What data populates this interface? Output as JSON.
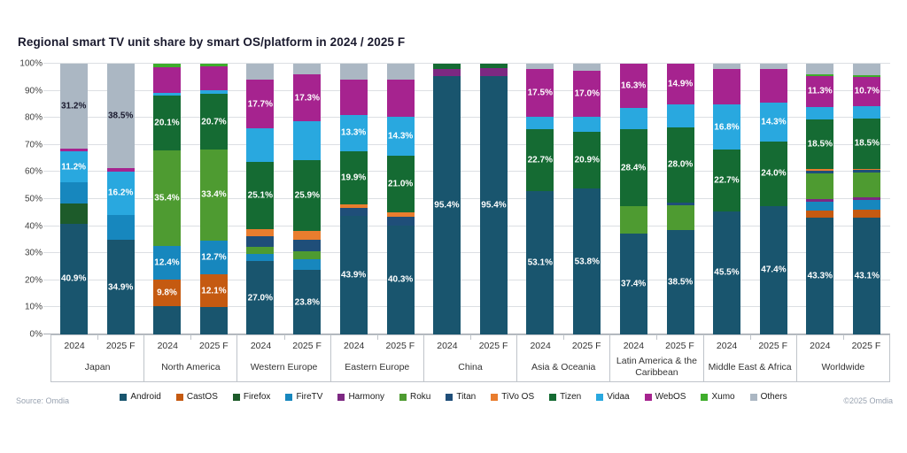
{
  "title": "Regional smart TV unit share by smart OS/platform in 2024 / 2025 F",
  "source": "Source: Omdia",
  "copyright": "©2025 Omdia",
  "y_axis": {
    "ticks": [
      "0%",
      "10%",
      "20%",
      "30%",
      "40%",
      "50%",
      "60%",
      "70%",
      "80%",
      "90%",
      "100%"
    ]
  },
  "legend": [
    {
      "name": "Android",
      "color": "#19556E"
    },
    {
      "name": "CastOS",
      "color": "#C55A11"
    },
    {
      "name": "Firefox",
      "color": "#1D5B2A"
    },
    {
      "name": "FireTV",
      "color": "#1787BE"
    },
    {
      "name": "Harmony",
      "color": "#7D2882"
    },
    {
      "name": "Roku",
      "color": "#4E9B31"
    },
    {
      "name": "Titan",
      "color": "#1F4E79"
    },
    {
      "name": "TiVo OS",
      "color": "#E97D2E"
    },
    {
      "name": "Tizen",
      "color": "#156B33"
    },
    {
      "name": "Vidaa",
      "color": "#29A8DF"
    },
    {
      "name": "WebOS",
      "color": "#A6238F"
    },
    {
      "name": "Xumo",
      "color": "#3FAD2C"
    },
    {
      "name": "Others",
      "color": "#ABB7C3"
    }
  ],
  "chart_data": {
    "type": "bar",
    "stacked": true,
    "unit": "%",
    "ylim": [
      0,
      100
    ],
    "grid": true,
    "legend_position": "bottom",
    "note": "lbl=true means the value label is printed on the segment; dk=true means dark label text",
    "groups": [
      {
        "region": "Japan",
        "bars": [
          {
            "year": "2024",
            "segments": [
              {
                "name": "Android",
                "value": 40.9,
                "lbl": true
              },
              {
                "name": "Firefox",
                "value": 7.4
              },
              {
                "name": "FireTV",
                "value": 8.0
              },
              {
                "name": "Vidaa",
                "value": 11.2,
                "lbl": true
              },
              {
                "name": "WebOS",
                "value": 1.3
              },
              {
                "name": "Others",
                "value": 31.2,
                "lbl": true,
                "dk": true
              }
            ]
          },
          {
            "year": "2025 F",
            "segments": [
              {
                "name": "Android",
                "value": 34.9,
                "lbl": true
              },
              {
                "name": "FireTV",
                "value": 9.2
              },
              {
                "name": "Vidaa",
                "value": 16.2,
                "lbl": true
              },
              {
                "name": "WebOS",
                "value": 1.2
              },
              {
                "name": "Others",
                "value": 38.5,
                "lbl": true,
                "dk": true
              }
            ]
          }
        ]
      },
      {
        "region": "North America",
        "bars": [
          {
            "year": "2024",
            "segments": [
              {
                "name": "Android",
                "value": 10.4
              },
              {
                "name": "CastOS",
                "value": 9.8,
                "lbl": true
              },
              {
                "name": "FireTV",
                "value": 12.4,
                "lbl": true
              },
              {
                "name": "Roku",
                "value": 35.4,
                "lbl": true
              },
              {
                "name": "Tizen",
                "value": 20.1,
                "lbl": true
              },
              {
                "name": "Vidaa",
                "value": 1.2
              },
              {
                "name": "WebOS",
                "value": 9.5
              },
              {
                "name": "Xumo",
                "value": 1.2
              }
            ]
          },
          {
            "year": "2025 F",
            "segments": [
              {
                "name": "Android",
                "value": 10.0
              },
              {
                "name": "CastOS",
                "value": 12.1,
                "lbl": true
              },
              {
                "name": "FireTV",
                "value": 12.7,
                "lbl": true
              },
              {
                "name": "Roku",
                "value": 33.4,
                "lbl": true
              },
              {
                "name": "Tizen",
                "value": 20.7,
                "lbl": true
              },
              {
                "name": "Vidaa",
                "value": 1.3
              },
              {
                "name": "WebOS",
                "value": 8.8
              },
              {
                "name": "Xumo",
                "value": 1.0
              }
            ]
          }
        ]
      },
      {
        "region": "Western Europe",
        "bars": [
          {
            "year": "2024",
            "segments": [
              {
                "name": "Android",
                "value": 27.0,
                "lbl": true
              },
              {
                "name": "FireTV",
                "value": 2.7
              },
              {
                "name": "Roku",
                "value": 2.7
              },
              {
                "name": "Titan",
                "value": 3.8
              },
              {
                "name": "TiVo OS",
                "value": 2.6
              },
              {
                "name": "Tizen",
                "value": 25.1,
                "lbl": true
              },
              {
                "name": "Vidaa",
                "value": 12.4
              },
              {
                "name": "WebOS",
                "value": 17.7,
                "lbl": true
              },
              {
                "name": "Others",
                "value": 6.0
              }
            ]
          },
          {
            "year": "2025 F",
            "segments": [
              {
                "name": "Android",
                "value": 23.8,
                "lbl": true
              },
              {
                "name": "FireTV",
                "value": 4.0
              },
              {
                "name": "Roku",
                "value": 3.0
              },
              {
                "name": "Titan",
                "value": 4.2
              },
              {
                "name": "TiVo OS",
                "value": 3.4
              },
              {
                "name": "Tizen",
                "value": 25.9,
                "lbl": true
              },
              {
                "name": "Vidaa",
                "value": 14.4
              },
              {
                "name": "WebOS",
                "value": 17.3,
                "lbl": true
              },
              {
                "name": "Others",
                "value": 4.0
              }
            ]
          }
        ]
      },
      {
        "region": "Eastern Europe",
        "bars": [
          {
            "year": "2024",
            "segments": [
              {
                "name": "Android",
                "value": 43.9,
                "lbl": true
              },
              {
                "name": "Titan",
                "value": 2.8
              },
              {
                "name": "TiVo OS",
                "value": 1.2
              },
              {
                "name": "Tizen",
                "value": 19.9,
                "lbl": true
              },
              {
                "name": "Vidaa",
                "value": 13.3,
                "lbl": true
              },
              {
                "name": "WebOS",
                "value": 12.9
              },
              {
                "name": "Others",
                "value": 6.0
              }
            ]
          },
          {
            "year": "2025 F",
            "segments": [
              {
                "name": "Android",
                "value": 40.3,
                "lbl": true
              },
              {
                "name": "Titan",
                "value": 3.2
              },
              {
                "name": "TiVo OS",
                "value": 1.5
              },
              {
                "name": "Tizen",
                "value": 21.0,
                "lbl": true
              },
              {
                "name": "Vidaa",
                "value": 14.3,
                "lbl": true
              },
              {
                "name": "WebOS",
                "value": 13.9
              },
              {
                "name": "Others",
                "value": 5.8
              }
            ]
          }
        ]
      },
      {
        "region": "China",
        "bars": [
          {
            "year": "2024",
            "segments": [
              {
                "name": "Android",
                "value": 95.4,
                "lbl": true
              },
              {
                "name": "Harmony",
                "value": 2.8
              },
              {
                "name": "Tizen",
                "value": 1.8
              }
            ]
          },
          {
            "year": "2025 F",
            "segments": [
              {
                "name": "Android",
                "value": 95.4,
                "lbl": true
              },
              {
                "name": "Harmony",
                "value": 3.0
              },
              {
                "name": "Tizen",
                "value": 1.6
              }
            ]
          }
        ]
      },
      {
        "region": "Asia & Oceania",
        "bars": [
          {
            "year": "2024",
            "segments": [
              {
                "name": "Android",
                "value": 53.1,
                "lbl": true
              },
              {
                "name": "Tizen",
                "value": 22.7,
                "lbl": true
              },
              {
                "name": "Vidaa",
                "value": 4.6
              },
              {
                "name": "WebOS",
                "value": 17.5,
                "lbl": true
              },
              {
                "name": "Others",
                "value": 2.1
              }
            ]
          },
          {
            "year": "2025 F",
            "segments": [
              {
                "name": "Android",
                "value": 53.8,
                "lbl": true
              },
              {
                "name": "Tizen",
                "value": 20.9,
                "lbl": true
              },
              {
                "name": "Vidaa",
                "value": 5.6
              },
              {
                "name": "WebOS",
                "value": 17.0,
                "lbl": true
              },
              {
                "name": "Others",
                "value": 2.7
              }
            ]
          }
        ]
      },
      {
        "region": "Latin America & the Caribbean",
        "bars": [
          {
            "year": "2024",
            "segments": [
              {
                "name": "Android",
                "value": 37.4,
                "lbl": true
              },
              {
                "name": "Roku",
                "value": 9.9
              },
              {
                "name": "Tizen",
                "value": 28.4,
                "lbl": true
              },
              {
                "name": "Vidaa",
                "value": 8.0
              },
              {
                "name": "WebOS",
                "value": 16.3,
                "lbl": true
              }
            ]
          },
          {
            "year": "2025 F",
            "segments": [
              {
                "name": "Android",
                "value": 38.5,
                "lbl": true
              },
              {
                "name": "Roku",
                "value": 9.1
              },
              {
                "name": "Titan",
                "value": 1.0
              },
              {
                "name": "Tizen",
                "value": 28.0,
                "lbl": true
              },
              {
                "name": "Vidaa",
                "value": 8.5
              },
              {
                "name": "WebOS",
                "value": 14.9,
                "lbl": true
              }
            ]
          }
        ]
      },
      {
        "region": "Middle East & Africa",
        "bars": [
          {
            "year": "2024",
            "segments": [
              {
                "name": "Android",
                "value": 45.5,
                "lbl": true
              },
              {
                "name": "Tizen",
                "value": 22.7,
                "lbl": true
              },
              {
                "name": "Vidaa",
                "value": 16.8,
                "lbl": true
              },
              {
                "name": "WebOS",
                "value": 13.2
              },
              {
                "name": "Others",
                "value": 1.8
              }
            ]
          },
          {
            "year": "2025 F",
            "segments": [
              {
                "name": "Android",
                "value": 47.4,
                "lbl": true
              },
              {
                "name": "Tizen",
                "value": 24.0,
                "lbl": true
              },
              {
                "name": "Vidaa",
                "value": 14.3,
                "lbl": true
              },
              {
                "name": "WebOS",
                "value": 12.5
              },
              {
                "name": "Others",
                "value": 1.8
              }
            ]
          }
        ]
      },
      {
        "region": "Worldwide",
        "bars": [
          {
            "year": "2024",
            "segments": [
              {
                "name": "Android",
                "value": 43.3,
                "lbl": true
              },
              {
                "name": "CastOS",
                "value": 2.6
              },
              {
                "name": "FireTV",
                "value": 3.2
              },
              {
                "name": "Harmony",
                "value": 0.9
              },
              {
                "name": "Roku",
                "value": 9.5
              },
              {
                "name": "Titan",
                "value": 1.0
              },
              {
                "name": "TiVo OS",
                "value": 0.5
              },
              {
                "name": "Tizen",
                "value": 18.5,
                "lbl": true
              },
              {
                "name": "Vidaa",
                "value": 4.6
              },
              {
                "name": "WebOS",
                "value": 11.3,
                "lbl": true
              },
              {
                "name": "Xumo",
                "value": 0.6
              },
              {
                "name": "Others",
                "value": 4.0
              }
            ]
          },
          {
            "year": "2025 F",
            "segments": [
              {
                "name": "Android",
                "value": 43.1,
                "lbl": true
              },
              {
                "name": "CastOS",
                "value": 3.0
              },
              {
                "name": "FireTV",
                "value": 3.6
              },
              {
                "name": "Harmony",
                "value": 1.0
              },
              {
                "name": "Roku",
                "value": 9.0
              },
              {
                "name": "Titan",
                "value": 1.0
              },
              {
                "name": "TiVo OS",
                "value": 0.5
              },
              {
                "name": "Tizen",
                "value": 18.5,
                "lbl": true
              },
              {
                "name": "Vidaa",
                "value": 4.8
              },
              {
                "name": "WebOS",
                "value": 10.7,
                "lbl": true
              },
              {
                "name": "Xumo",
                "value": 0.6
              },
              {
                "name": "Others",
                "value": 4.2
              }
            ]
          }
        ]
      }
    ]
  }
}
